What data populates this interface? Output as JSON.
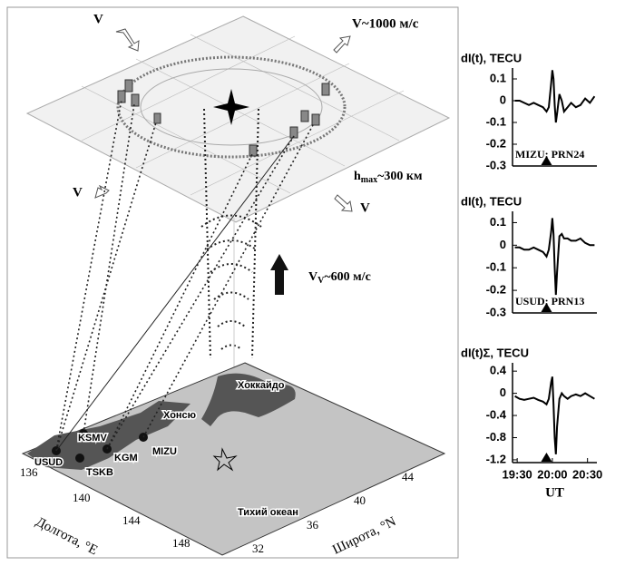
{
  "diagram": {
    "ionosphere": {
      "velocity_labels": [
        "V",
        "V",
        "V"
      ],
      "velocity_value": "V~1000 м/с",
      "height": {
        "base": "h",
        "sub": "max",
        "rest": "~300 км"
      }
    },
    "vertical_velocity": {
      "base": "V",
      "sub": "V",
      "rest": "~600 м/с"
    },
    "regions": [
      "Хоккайдо",
      "Хонсю",
      "Тихий океан"
    ],
    "stations": [
      "KSMV",
      "USUD",
      "KGM",
      "TSKB",
      "MIZU"
    ],
    "longitude": {
      "label": "Долгота, °E",
      "ticks": [
        "136",
        "140",
        "144",
        "148"
      ]
    },
    "latitude": {
      "label": "Широта, °N",
      "ticks": [
        "32",
        "36",
        "40",
        "44"
      ]
    }
  },
  "chart_data": [
    {
      "type": "line",
      "ylabel": "dI(t), TECU",
      "label": "MIZU; PRN24",
      "color": "#000000",
      "x": [
        1168,
        1172,
        1176,
        1180,
        1184,
        1188,
        1192,
        1195,
        1197,
        1199,
        1200,
        1201,
        1202,
        1203,
        1204,
        1206,
        1208,
        1210,
        1213,
        1216,
        1220,
        1224,
        1228,
        1232,
        1236
      ],
      "values": [
        0,
        0,
        -0.01,
        -0.02,
        -0.01,
        -0.02,
        -0.03,
        -0.05,
        -0.03,
        0.08,
        0.14,
        0.1,
        -0.02,
        -0.1,
        -0.06,
        0.03,
        0,
        -0.05,
        -0.03,
        -0.01,
        -0.03,
        -0.02,
        0.01,
        -0.01,
        0.02
      ],
      "xlim": [
        1166,
        1238
      ],
      "ylim": [
        -0.3,
        0.15
      ],
      "yticks": [
        0.1,
        0,
        -0.1,
        -0.2,
        -0.3
      ],
      "event_x": 1195
    },
    {
      "type": "line",
      "ylabel": "dI(t), TECU",
      "label": "USUD; PRN13",
      "color": "#000000",
      "x": [
        1168,
        1172,
        1176,
        1180,
        1184,
        1188,
        1192,
        1195,
        1197,
        1199,
        1200,
        1201,
        1202,
        1203,
        1204,
        1206,
        1208,
        1210,
        1213,
        1216,
        1220,
        1224,
        1228,
        1232,
        1236
      ],
      "values": [
        -0.01,
        -0.01,
        -0.02,
        -0.02,
        -0.01,
        -0.02,
        -0.03,
        -0.05,
        -0.02,
        0.06,
        0.12,
        0.05,
        -0.1,
        -0.22,
        -0.12,
        0.04,
        0.05,
        0.03,
        0.03,
        0.02,
        0.02,
        0.03,
        0.01,
        0,
        0
      ],
      "xlim": [
        1166,
        1238
      ],
      "ylim": [
        -0.3,
        0.15
      ],
      "yticks": [
        0.1,
        0,
        -0.1,
        -0.2,
        -0.3
      ],
      "event_x": 1195
    },
    {
      "type": "line",
      "ylabel": "dI(t)Σ, TECU",
      "xlabel": "UT",
      "color": "#000000",
      "x": [
        1168,
        1172,
        1176,
        1180,
        1184,
        1188,
        1192,
        1195,
        1197,
        1199,
        1200,
        1201,
        1202,
        1203,
        1204,
        1206,
        1208,
        1210,
        1213,
        1216,
        1220,
        1224,
        1228,
        1232,
        1236
      ],
      "values": [
        -0.05,
        -0.1,
        -0.12,
        -0.1,
        -0.08,
        -0.12,
        -0.15,
        -0.2,
        -0.1,
        0.2,
        0.3,
        -0.2,
        -0.8,
        -1.1,
        -0.6,
        -0.1,
        0,
        -0.05,
        -0.1,
        -0.05,
        -0.02,
        -0.05,
        0,
        -0.05,
        -0.1
      ],
      "xlim": [
        1166,
        1238
      ],
      "ylim": [
        -1.25,
        0.55
      ],
      "yticks": [
        0.4,
        0,
        -0.4,
        -0.8,
        -1.2
      ],
      "xticks": [
        {
          "value": 1170,
          "label": "19:30"
        },
        {
          "value": 1200,
          "label": "20:00"
        },
        {
          "value": 1230,
          "label": "20:30"
        }
      ],
      "event_x": 1195
    }
  ]
}
